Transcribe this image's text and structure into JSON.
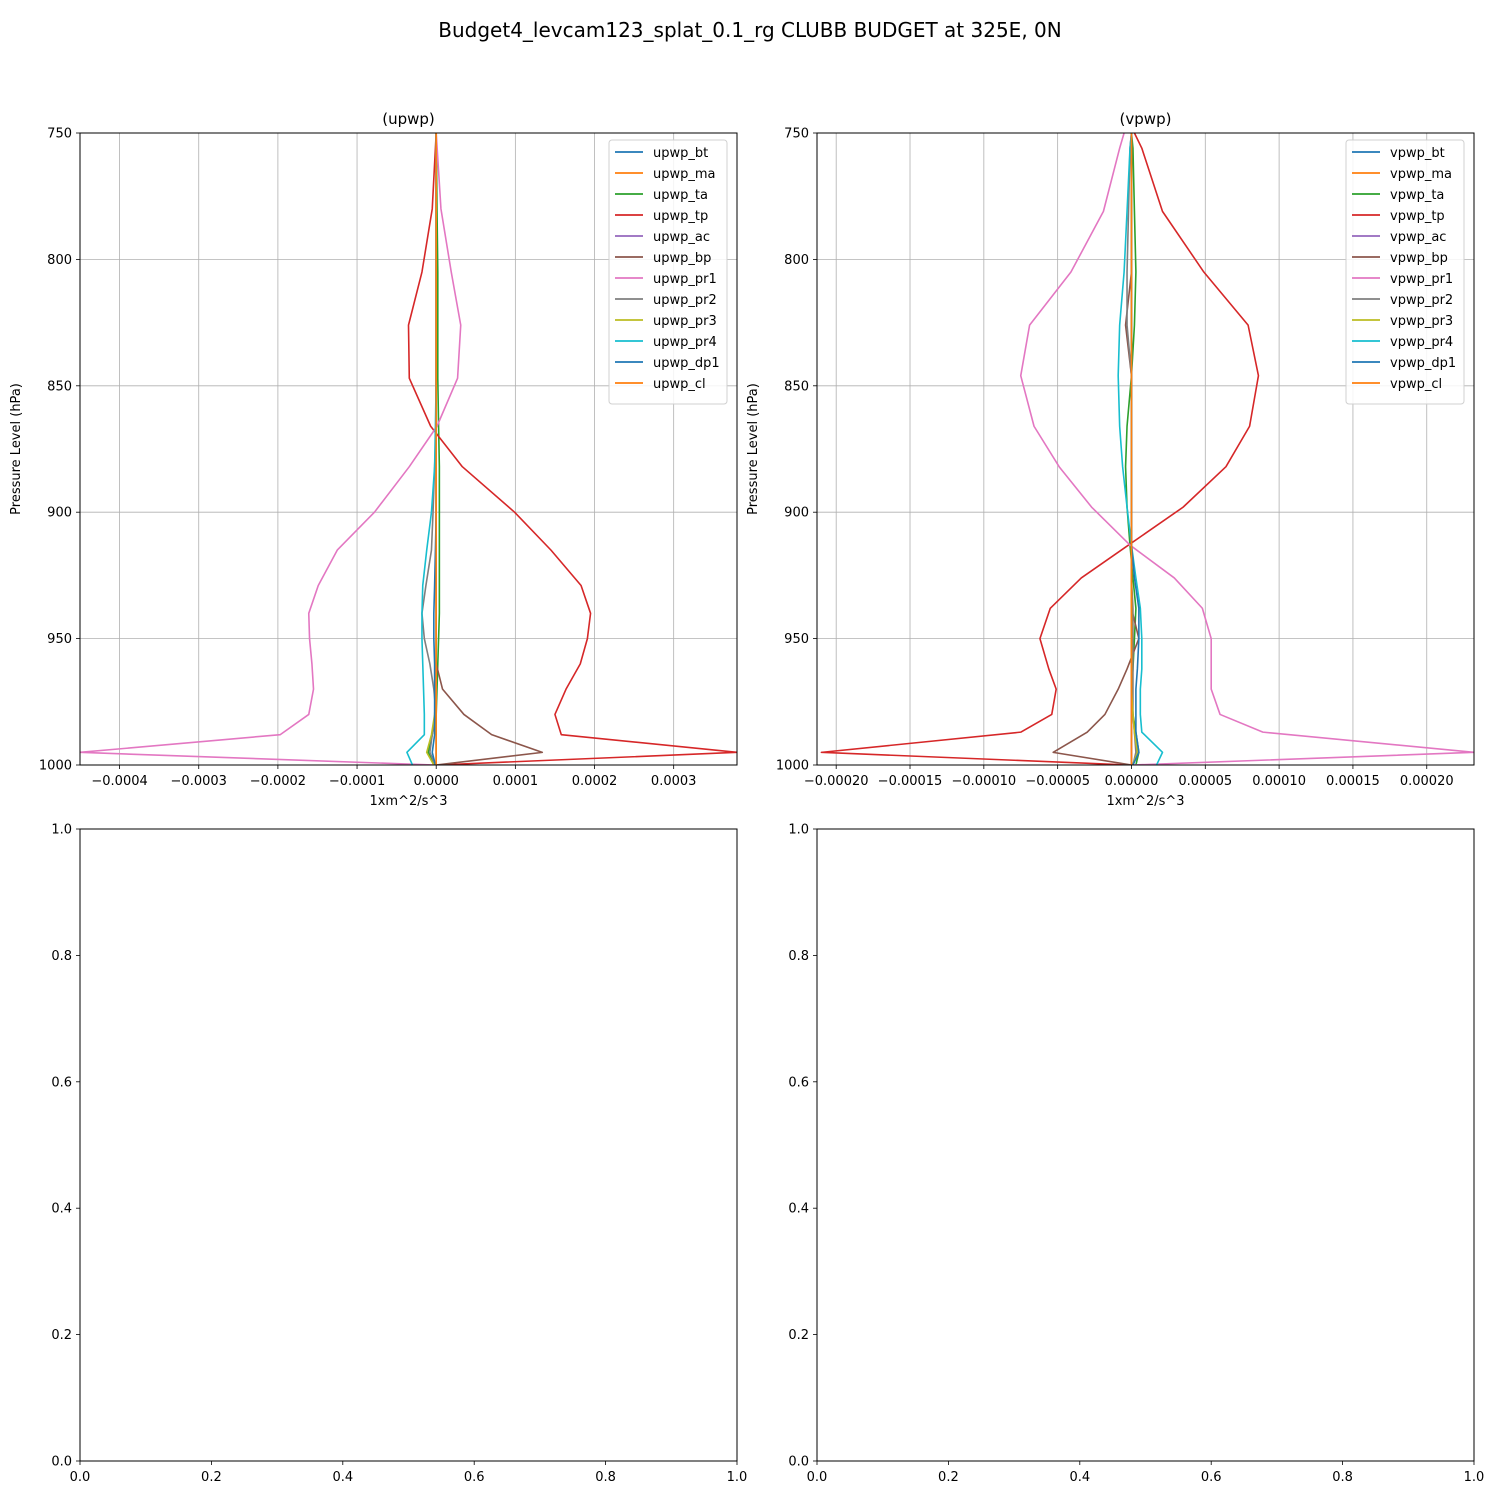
{
  "figure": {
    "title": "Budget4_levcam123_splat_0.1_rg CLUBB BUDGET at 325E, 0N"
  },
  "series_colors": [
    "#1f77b4",
    "#ff7f0e",
    "#2ca02c",
    "#d62728",
    "#9467bd",
    "#8c564b",
    "#e377c2",
    "#7f7f7f",
    "#bcbd22",
    "#17becf",
    "#1f77b4",
    "#ff7f0e"
  ],
  "chart_data": [
    {
      "type": "line",
      "title": "(upwp)",
      "xlabel": "1xm^2/s^3",
      "ylabel": "Pressure Level (hPa)",
      "xlim": [
        -0.00045,
        0.00038
      ],
      "ylim": [
        1000,
        750
      ],
      "y_inverted": true,
      "grid": true,
      "legend": "top-right",
      "xticks": [
        -0.0004,
        -0.0003,
        -0.0002,
        -0.0001,
        0.0,
        0.0001,
        0.0002,
        0.0003
      ],
      "xtick_labels": [
        "−0.0004",
        "−0.0003",
        "−0.0002",
        "−0.0001",
        "0.0000",
        "0.0001",
        "0.0002",
        "0.0003"
      ],
      "yticks": [
        750,
        800,
        850,
        900,
        950,
        1000
      ],
      "ytick_labels": [
        "750",
        "800",
        "850",
        "900",
        "950",
        "1000"
      ],
      "levels": [
        750,
        780,
        805,
        826,
        847,
        866,
        882,
        900,
        915,
        929,
        940,
        950,
        960,
        970,
        980,
        988,
        995,
        1000
      ],
      "series": [
        {
          "name": "upwp_bt",
          "values": [
            0,
            0,
            0,
            0,
            0,
            0,
            0,
            0,
            0,
            0,
            0,
            0,
            0,
            0,
            0,
            0,
            0,
            0
          ]
        },
        {
          "name": "upwp_ma",
          "values": [
            0,
            0,
            0,
            0,
            0,
            0,
            0,
            0,
            0,
            0,
            0,
            0,
            0,
            0,
            0,
            0,
            0,
            0
          ]
        },
        {
          "name": "upwp_ta",
          "values": [
            0,
            1e-06,
            2e-06,
            2e-06,
            2e-06,
            3e-06,
            4e-06,
            4e-06,
            4e-06,
            4e-06,
            4e-06,
            3e-06,
            2e-06,
            1e-06,
            0,
            -5e-06,
            -1e-05,
            -3e-06
          ]
        },
        {
          "name": "upwp_tp",
          "values": [
            0,
            -5e-06,
            -1.8e-05,
            -3.5e-05,
            -3.4e-05,
            -7e-06,
            3.3e-05,
            9.9e-05,
            0.000145,
            0.000183,
            0.000195,
            0.000191,
            0.000182,
            0.000164,
            0.00015,
            0.000158,
            0.00038,
            1e-06
          ]
        },
        {
          "name": "upwp_ac",
          "values": [
            0,
            0,
            0,
            0,
            0,
            0,
            0,
            0,
            0,
            0,
            0,
            0,
            0,
            0,
            0,
            0,
            0,
            0
          ]
        },
        {
          "name": "upwp_bp",
          "values": [
            0,
            0,
            0,
            0,
            0,
            0,
            0,
            0,
            0,
            0,
            0,
            0,
            0,
            8e-06,
            3.5e-05,
            7e-05,
            0.000134,
            0
          ]
        },
        {
          "name": "upwp_pr1",
          "values": [
            0,
            6e-06,
            1.9e-05,
            3.1e-05,
            2.7e-05,
            1e-06,
            -3.4e-05,
            -7.8e-05,
            -0.000125,
            -0.000149,
            -0.000161,
            -0.00016,
            -0.000157,
            -0.000155,
            -0.000161,
            -0.000197,
            -0.00045,
            -2e-06
          ]
        },
        {
          "name": "upwp_pr2",
          "values": [
            0,
            0,
            0,
            0,
            0,
            0,
            -2e-06,
            -4e-06,
            -6e-06,
            -1.3e-05,
            -1.8e-05,
            -1.5e-05,
            -8e-06,
            -3e-06,
            0,
            -5e-06,
            -8e-06,
            -1e-06
          ]
        },
        {
          "name": "upwp_pr3",
          "values": [
            0,
            0,
            0,
            0,
            0,
            0,
            0,
            0,
            0,
            0,
            0,
            0,
            0,
            0,
            -2e-06,
            -6e-06,
            -1.2e-05,
            -3e-06
          ]
        },
        {
          "name": "upwp_pr4",
          "values": [
            0,
            0,
            0,
            0,
            0,
            -1e-06,
            -2e-06,
            -6e-06,
            -1.2e-05,
            -1.7e-05,
            -1.8e-05,
            -1.8e-05,
            -1.7e-05,
            -1.6e-05,
            -1.5e-05,
            -1.5e-05,
            -3.7e-05,
            -3e-05
          ]
        },
        {
          "name": "upwp_dp1",
          "values": [
            0,
            0,
            0,
            0,
            0,
            0,
            0,
            0,
            -1e-06,
            -2e-06,
            -3e-06,
            -3e-06,
            -2e-06,
            -2e-06,
            -2e-06,
            -2e-06,
            -5e-06,
            -1e-06
          ]
        },
        {
          "name": "upwp_cl",
          "values": [
            0,
            0,
            0,
            0,
            0,
            0,
            0,
            0,
            0,
            0,
            0,
            0,
            0,
            0,
            0,
            0,
            0,
            0
          ]
        }
      ]
    },
    {
      "type": "line",
      "title": "(vpwp)",
      "xlabel": "1xm^2/s^3",
      "ylabel": "Pressure Level (hPa)",
      "xlim": [
        -0.000213,
        0.000232
      ],
      "ylim": [
        1000,
        750
      ],
      "y_inverted": true,
      "grid": true,
      "legend": "top-right",
      "xticks": [
        -0.0002,
        -0.00015,
        -0.0001,
        -5e-05,
        0.0,
        5e-05,
        0.0001,
        0.00015,
        0.0002
      ],
      "xtick_labels": [
        "−0.00020",
        "−0.00015",
        "−0.00010",
        "−0.00005",
        "0.00000",
        "0.00005",
        "0.00010",
        "0.00015",
        "0.00020"
      ],
      "yticks": [
        750,
        800,
        850,
        900,
        950,
        1000
      ],
      "ytick_labels": [
        "750",
        "800",
        "850",
        "900",
        "950",
        "1000"
      ],
      "levels": [
        750,
        756,
        781,
        805,
        826,
        846,
        866,
        882,
        898,
        913,
        926,
        938,
        950,
        962,
        970,
        980,
        987,
        995,
        1000
      ],
      "series": [
        {
          "name": "vpwp_bt",
          "values": [
            0,
            0,
            0,
            0,
            0,
            0,
            0,
            0,
            0,
            0,
            0,
            0,
            0,
            0,
            0,
            0,
            0,
            0,
            0
          ]
        },
        {
          "name": "vpwp_ma",
          "values": [
            0,
            0,
            0,
            0,
            0,
            0,
            0,
            0,
            0,
            0,
            0,
            0,
            0,
            0,
            0,
            0,
            0,
            0,
            0
          ]
        },
        {
          "name": "vpwp_ta",
          "values": [
            0,
            1e-06,
            2e-06,
            3e-06,
            2e-06,
            0,
            -3e-06,
            -4e-06,
            -3e-06,
            -1e-06,
            1e-06,
            3e-06,
            2e-06,
            1e-06,
            0,
            1e-06,
            3e-06,
            5e-06,
            3e-06
          ]
        },
        {
          "name": "vpwp_tp",
          "values": [
            2e-06,
            7e-06,
            2.1e-05,
            4.9e-05,
            7.9e-05,
            8.6e-05,
            8e-05,
            6.4e-05,
            3.5e-05,
            -2e-06,
            -3.4e-05,
            -5.5e-05,
            -6.2e-05,
            -5.6e-05,
            -5.1e-05,
            -5.4e-05,
            -7.5e-05,
            -0.00021,
            -1e-06
          ]
        },
        {
          "name": "vpwp_ac",
          "values": [
            0,
            0,
            0,
            0,
            0,
            0,
            0,
            0,
            0,
            0,
            0,
            0,
            0,
            0,
            0,
            0,
            0,
            0,
            0
          ]
        },
        {
          "name": "vpwp_bp",
          "values": [
            0,
            0,
            0,
            0,
            -4e-06,
            0,
            0,
            0,
            0,
            0,
            0,
            0,
            5e-06,
            -3e-06,
            -9e-06,
            -1.8e-05,
            -3e-05,
            -5.3e-05,
            0
          ]
        },
        {
          "name": "vpwp_pr1",
          "values": [
            -5e-06,
            -8e-06,
            -1.9e-05,
            -4.1e-05,
            -6.9e-05,
            -7.5e-05,
            -6.6e-05,
            -4.9e-05,
            -2.7e-05,
            -1e-06,
            2.9e-05,
            4.8e-05,
            5.4e-05,
            5.4e-05,
            5.4e-05,
            6e-05,
            8.9e-05,
            0.000232,
            1e-06
          ]
        },
        {
          "name": "vpwp_pr2",
          "values": [
            0,
            -1e-06,
            -2e-06,
            -3e-06,
            -3e-06,
            0,
            0,
            0,
            0,
            0,
            0,
            1e-06,
            1e-06,
            1e-06,
            1e-06,
            1e-06,
            2e-06,
            3e-06,
            1e-06
          ]
        },
        {
          "name": "vpwp_pr3",
          "values": [
            0,
            0,
            0,
            0,
            0,
            0,
            0,
            0,
            0,
            0,
            0,
            0,
            0,
            0,
            0,
            1e-06,
            2e-06,
            4e-06,
            1e-06
          ]
        },
        {
          "name": "vpwp_pr4",
          "values": [
            0,
            -1e-06,
            -3e-06,
            -5e-06,
            -8e-06,
            -9e-06,
            -8e-06,
            -6e-06,
            -3e-06,
            0,
            3e-06,
            6e-06,
            7e-06,
            7e-06,
            6e-06,
            6e-06,
            7e-06,
            2.1e-05,
            1.7e-05
          ]
        },
        {
          "name": "vpwp_dp1",
          "values": [
            0,
            0,
            0,
            0,
            0,
            0,
            0,
            0,
            0,
            0,
            2e-06,
            5e-06,
            5e-06,
            4e-06,
            3e-06,
            3e-06,
            3e-06,
            5e-06,
            1e-06
          ]
        },
        {
          "name": "vpwp_cl",
          "values": [
            0,
            0,
            0,
            0,
            0,
            0,
            0,
            0,
            0,
            0,
            0,
            0,
            0,
            0,
            0,
            0,
            0,
            0,
            0
          ]
        }
      ]
    },
    {
      "type": "line",
      "title": "",
      "xlim": [
        0,
        1
      ],
      "ylim": [
        0,
        1
      ],
      "grid": false,
      "xticks": [
        0.0,
        0.2,
        0.4,
        0.6,
        0.8,
        1.0
      ],
      "xtick_labels": [
        "0.0",
        "0.2",
        "0.4",
        "0.6",
        "0.8",
        "1.0"
      ],
      "yticks": [
        0.0,
        0.2,
        0.4,
        0.6,
        0.8,
        1.0
      ],
      "ytick_labels": [
        "0.0",
        "0.2",
        "0.4",
        "0.6",
        "0.8",
        "1.0"
      ],
      "series": []
    },
    {
      "type": "line",
      "title": "",
      "xlim": [
        0,
        1
      ],
      "ylim": [
        0,
        1
      ],
      "grid": false,
      "xticks": [
        0.0,
        0.2,
        0.4,
        0.6,
        0.8,
        1.0
      ],
      "xtick_labels": [
        "0.0",
        "0.2",
        "0.4",
        "0.6",
        "0.8",
        "1.0"
      ],
      "yticks": [
        0.0,
        0.2,
        0.4,
        0.6,
        0.8,
        1.0
      ],
      "ytick_labels": [
        "0.0",
        "0.2",
        "0.4",
        "0.6",
        "0.8",
        "1.0"
      ],
      "series": []
    }
  ]
}
